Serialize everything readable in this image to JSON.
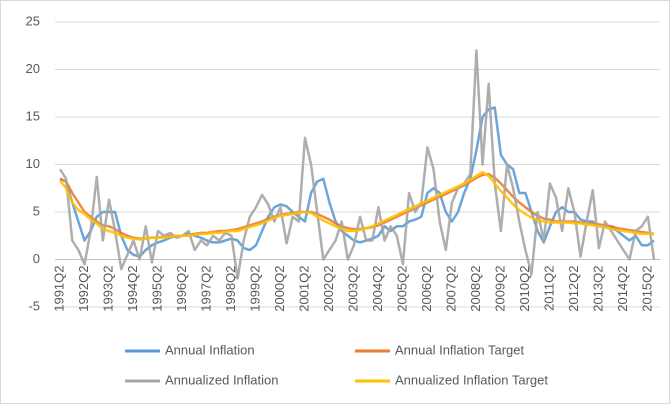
{
  "chart_data": {
    "type": "line",
    "categories": [
      "1991Q2",
      null,
      null,
      null,
      "1992Q2",
      null,
      null,
      null,
      "1993Q2",
      null,
      null,
      null,
      "1994Q2",
      null,
      null,
      null,
      "1995Q2",
      null,
      null,
      null,
      "1996Q2",
      null,
      null,
      null,
      "1997Q2",
      null,
      null,
      null,
      "1998Q2",
      null,
      null,
      null,
      "1999Q2",
      null,
      null,
      null,
      "2000Q2",
      null,
      null,
      null,
      "2001Q2",
      null,
      null,
      null,
      "2002Q2",
      null,
      null,
      null,
      "2003Q2",
      null,
      null,
      null,
      "2004Q2",
      null,
      null,
      null,
      "2005Q2",
      null,
      null,
      null,
      "2006Q2",
      null,
      null,
      null,
      "2007Q2",
      null,
      null,
      null,
      "2008Q2",
      null,
      null,
      null,
      "2009Q2",
      null,
      null,
      null,
      "2010Q2",
      null,
      null,
      null,
      "2011Q2",
      null,
      null,
      null,
      "2012Q2",
      null,
      null,
      null,
      "2013Q2",
      null,
      null,
      null,
      "2014Q2",
      null,
      null,
      null,
      "2015Q2",
      null
    ],
    "series": [
      {
        "name": "Annual Inflation",
        "color": "#5b9bd5",
        "values": [
          8.5,
          8.2,
          6.0,
          4.0,
          2.0,
          3.0,
          4.5,
          5.0,
          5.0,
          5.0,
          2.5,
          1.0,
          0.5,
          0.3,
          1.0,
          1.5,
          1.8,
          2.0,
          2.3,
          2.5,
          2.5,
          2.7,
          2.5,
          2.3,
          2.0,
          1.8,
          1.8,
          2.0,
          2.2,
          2.0,
          1.2,
          1.0,
          1.5,
          3.0,
          4.5,
          5.5,
          5.8,
          5.6,
          5.0,
          4.5,
          4.0,
          7.0,
          8.2,
          8.5,
          6.0,
          4.0,
          3.0,
          2.5,
          2.0,
          1.8,
          2.0,
          2.2,
          2.5,
          3.5,
          3.0,
          3.5,
          3.5,
          4.0,
          4.2,
          4.5,
          7.0,
          7.5,
          7.0,
          5.0,
          4.0,
          5.0,
          7.0,
          8.5,
          11.5,
          15.0,
          15.8,
          16.0,
          11.0,
          10.0,
          9.5,
          7.0,
          7.0,
          5.0,
          3.0,
          1.8,
          3.5,
          5.0,
          5.5,
          5.0,
          5.0,
          4.2,
          4.0,
          4.0,
          3.5,
          3.5,
          3.5,
          3.0,
          2.5,
          2.0,
          2.5,
          1.5,
          1.5,
          2.0
        ]
      },
      {
        "name": "Annual Inflation Target",
        "color": "#ed7d31",
        "values": [
          8.5,
          8.2,
          7.0,
          6.0,
          5.0,
          4.5,
          4.0,
          3.6,
          3.5,
          3.2,
          2.8,
          2.5,
          2.3,
          2.2,
          2.2,
          2.3,
          2.3,
          2.4,
          2.5,
          2.5,
          2.5,
          2.6,
          2.7,
          2.8,
          2.8,
          2.9,
          3.0,
          3.0,
          3.1,
          3.2,
          3.4,
          3.6,
          3.8,
          4.0,
          4.3,
          4.5,
          4.7,
          4.8,
          4.9,
          5.0,
          5.0,
          5.0,
          4.8,
          4.5,
          4.2,
          3.8,
          3.5,
          3.3,
          3.2,
          3.2,
          3.3,
          3.4,
          3.6,
          3.9,
          4.2,
          4.5,
          4.8,
          5.1,
          5.4,
          5.7,
          6.0,
          6.3,
          6.6,
          6.9,
          7.2,
          7.5,
          7.8,
          8.2,
          8.6,
          8.9,
          9.0,
          8.6,
          8.0,
          7.3,
          6.6,
          6.0,
          5.5,
          5.0,
          4.6,
          4.3,
          4.2,
          4.0,
          4.0,
          4.0,
          4.0,
          3.9,
          3.8,
          3.8,
          3.7,
          3.6,
          3.5,
          3.3,
          3.2,
          3.1,
          3.0,
          2.9,
          2.8,
          2.7
        ]
      },
      {
        "name": "Annualized Inflation",
        "color": "#a5a5a5",
        "values": [
          9.5,
          8.5,
          2.0,
          1.0,
          -0.5,
          3.0,
          8.7,
          2.0,
          6.3,
          3.0,
          -1.0,
          0.5,
          2.0,
          0.0,
          3.5,
          -0.3,
          3.0,
          2.5,
          2.8,
          2.3,
          2.5,
          3.0,
          1.0,
          2.0,
          1.5,
          2.5,
          2.0,
          2.8,
          2.5,
          -2.0,
          2.0,
          4.5,
          5.5,
          6.8,
          5.8,
          4.0,
          5.5,
          1.7,
          4.5,
          4.0,
          12.8,
          10.0,
          5.0,
          0.0,
          1.0,
          2.0,
          4.0,
          0.0,
          1.5,
          4.5,
          2.0,
          2.0,
          5.5,
          2.0,
          3.5,
          2.5,
          -0.5,
          7.0,
          5.0,
          6.0,
          11.8,
          9.5,
          4.0,
          1.0,
          6.0,
          7.5,
          8.0,
          9.0,
          22.0,
          10.0,
          18.5,
          8.0,
          3.0,
          10.0,
          7.5,
          4.0,
          1.0,
          -1.5,
          5.0,
          2.0,
          8.0,
          6.5,
          3.0,
          7.5,
          5.0,
          0.3,
          4.0,
          7.3,
          1.2,
          4.0,
          3.0,
          2.0,
          1.0,
          0.0,
          3.0,
          3.5,
          4.5,
          0.0
        ]
      },
      {
        "name": "Annualized Inflation Target",
        "color": "#ffc000",
        "values": [
          8.3,
          7.5,
          6.0,
          5.2,
          4.8,
          4.2,
          3.8,
          3.2,
          3.0,
          2.8,
          2.5,
          2.3,
          2.2,
          2.1,
          2.2,
          2.3,
          2.3,
          2.3,
          2.4,
          2.5,
          2.5,
          2.5,
          2.6,
          2.7,
          2.7,
          2.8,
          2.8,
          2.9,
          3.0,
          3.0,
          3.2,
          3.4,
          3.6,
          3.8,
          4.1,
          4.4,
          4.6,
          4.7,
          4.8,
          4.9,
          5.0,
          4.9,
          4.5,
          4.1,
          3.8,
          3.5,
          3.2,
          3.0,
          3.0,
          3.1,
          3.3,
          3.5,
          3.8,
          4.1,
          4.4,
          4.7,
          5.0,
          5.3,
          5.6,
          5.9,
          6.2,
          6.5,
          6.8,
          7.1,
          7.4,
          7.7,
          8.0,
          8.4,
          8.8,
          9.2,
          8.8,
          8.0,
          7.2,
          6.5,
          5.8,
          5.2,
          4.8,
          4.4,
          4.1,
          4.0,
          3.9,
          3.9,
          3.9,
          3.9,
          3.8,
          3.8,
          3.7,
          3.6,
          3.5,
          3.4,
          3.2,
          3.1,
          3.0,
          2.9,
          2.8,
          2.7,
          2.7,
          2.7
        ]
      }
    ],
    "ylim": [
      -5,
      25
    ],
    "yticks": [
      -5,
      0,
      5,
      10,
      15,
      20,
      25
    ],
    "grid": true
  }
}
